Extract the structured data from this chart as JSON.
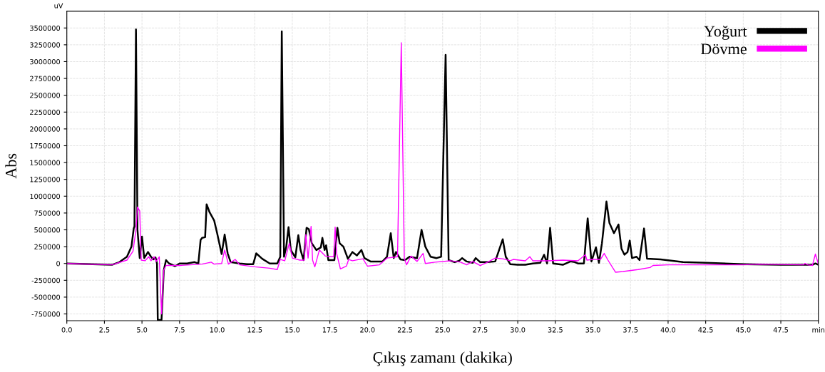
{
  "chart_data": {
    "type": "line",
    "xlabel": "Çıkış zamanı (dakika)",
    "ylabel": "Abs",
    "annotations": [
      "uV"
    ],
    "xlim": [
      0,
      50
    ],
    "ylim": [
      -850000,
      3750000
    ],
    "xticks": [
      {
        "value": 0,
        "label": "0.0"
      },
      {
        "value": 2.5,
        "label": "2.5"
      },
      {
        "value": 5,
        "label": "5.0"
      },
      {
        "value": 7.5,
        "label": "7.5"
      },
      {
        "value": 10,
        "label": "10.0"
      },
      {
        "value": 12.5,
        "label": "12.5"
      },
      {
        "value": 15,
        "label": "15.0"
      },
      {
        "value": 17.5,
        "label": "17.5"
      },
      {
        "value": 20,
        "label": "20.0"
      },
      {
        "value": 22.5,
        "label": "22.5"
      },
      {
        "value": 25,
        "label": "25.0"
      },
      {
        "value": 27.5,
        "label": "27.5"
      },
      {
        "value": 30,
        "label": "30.0"
      },
      {
        "value": 32.5,
        "label": "32.5"
      },
      {
        "value": 35,
        "label": "35.0"
      },
      {
        "value": 37.5,
        "label": "37.5"
      },
      {
        "value": 40,
        "label": "40.0"
      },
      {
        "value": 42.5,
        "label": "42.5"
      },
      {
        "value": 45,
        "label": "45.0"
      },
      {
        "value": 47.5,
        "label": "47.5"
      },
      {
        "value": 50,
        "label": "min"
      }
    ],
    "yticks": [
      -750000,
      -500000,
      -250000,
      0,
      250000,
      500000,
      750000,
      1000000,
      1250000,
      1500000,
      1750000,
      2000000,
      2250000,
      2500000,
      2750000,
      3000000,
      3250000,
      3500000
    ],
    "grid": true,
    "legend": "top right",
    "series": [
      {
        "name": "Yoğurt",
        "color": "#000000",
        "x": [
          0,
          3.0,
          3.5,
          4.0,
          4.3,
          4.45,
          4.5,
          4.6,
          4.7,
          4.85,
          5.0,
          5.15,
          5.4,
          5.6,
          5.75,
          5.9,
          6.0,
          6.05,
          6.3,
          6.45,
          6.6,
          6.8,
          7.2,
          7.5,
          8.0,
          8.5,
          8.75,
          8.9,
          9.0,
          9.2,
          9.3,
          9.5,
          9.8,
          10.0,
          10.3,
          10.5,
          10.7,
          10.9,
          11.5,
          12.0,
          12.4,
          12.6,
          13.0,
          13.5,
          14.0,
          14.2,
          14.3,
          14.45,
          14.6,
          14.75,
          14.9,
          15.2,
          15.4,
          15.55,
          15.75,
          15.95,
          16.1,
          16.3,
          16.6,
          16.9,
          17.0,
          17.15,
          17.25,
          17.4,
          17.8,
          18.0,
          18.15,
          18.4,
          18.7,
          19.0,
          19.3,
          19.6,
          19.8,
          20.2,
          21.0,
          21.3,
          21.55,
          21.75,
          21.9,
          22.2,
          22.5,
          22.8,
          23.3,
          23.6,
          23.85,
          24.2,
          24.6,
          24.9,
          25.2,
          25.4,
          25.8,
          26.1,
          26.3,
          26.6,
          27.0,
          27.2,
          27.5,
          28.0,
          28.5,
          29.0,
          29.2,
          29.5,
          30.0,
          30.5,
          31.0,
          31.5,
          31.75,
          31.95,
          32.15,
          32.35,
          33.0,
          33.5,
          33.8,
          34.0,
          34.4,
          34.65,
          34.9,
          35.2,
          35.4,
          35.6,
          35.9,
          36.1,
          36.4,
          36.7,
          36.9,
          37.1,
          37.3,
          37.45,
          37.6,
          37.9,
          38.1,
          38.4,
          38.6,
          39.5,
          41.0,
          42.5,
          45.0,
          47.5,
          49.6,
          49.8,
          50.0
        ],
        "values": [
          0,
          -20000,
          20000,
          100000,
          250000,
          520000,
          550000,
          3480000,
          500000,
          80000,
          400000,
          80000,
          170000,
          100000,
          60000,
          90000,
          0,
          -840000,
          -840000,
          -100000,
          50000,
          0,
          -40000,
          0,
          0,
          20000,
          0,
          350000,
          380000,
          390000,
          880000,
          760000,
          640000,
          450000,
          140000,
          430000,
          150000,
          20000,
          0,
          -10000,
          -10000,
          150000,
          70000,
          0,
          0,
          100000,
          3450000,
          100000,
          250000,
          540000,
          200000,
          90000,
          420000,
          200000,
          50000,
          530000,
          510000,
          300000,
          200000,
          240000,
          380000,
          200000,
          270000,
          50000,
          50000,
          530000,
          300000,
          250000,
          70000,
          170000,
          120000,
          200000,
          80000,
          30000,
          30000,
          100000,
          450000,
          80000,
          170000,
          60000,
          50000,
          100000,
          80000,
          500000,
          250000,
          100000,
          80000,
          100000,
          3100000,
          50000,
          20000,
          40000,
          80000,
          30000,
          10000,
          80000,
          20000,
          20000,
          30000,
          360000,
          100000,
          -10000,
          -20000,
          -20000,
          0,
          10000,
          130000,
          0,
          530000,
          0,
          -20000,
          30000,
          20000,
          0,
          0,
          670000,
          30000,
          240000,
          10000,
          300000,
          920000,
          600000,
          450000,
          580000,
          220000,
          130000,
          170000,
          340000,
          80000,
          100000,
          50000,
          520000,
          70000,
          60000,
          20000,
          10000,
          -10000,
          -20000,
          -20000,
          0,
          -20000
        ]
      },
      {
        "name": "Dövme",
        "color": "#ff00ff",
        "x": [
          0,
          3.0,
          4.0,
          4.4,
          4.6,
          4.7,
          4.85,
          4.95,
          5.2,
          5.45,
          5.6,
          5.8,
          5.95,
          6.15,
          6.3,
          6.45,
          6.6,
          7.5,
          9.0,
          9.6,
          9.8,
          10.3,
          10.5,
          10.75,
          11.2,
          11.5,
          12.5,
          13.5,
          14.0,
          14.2,
          14.5,
          14.8,
          15.0,
          15.5,
          15.8,
          15.9,
          16.05,
          16.25,
          16.35,
          16.5,
          16.8,
          17.2,
          17.75,
          17.85,
          17.95,
          18.2,
          18.6,
          18.75,
          19.0,
          19.7,
          20.0,
          20.8,
          21.3,
          22.0,
          22.25,
          22.45,
          22.6,
          22.9,
          23.3,
          23.7,
          23.85,
          24.5,
          25.5,
          26.2,
          26.6,
          27.0,
          27.5,
          28.0,
          28.5,
          29.0,
          29.5,
          29.7,
          30.5,
          30.8,
          31.0,
          32.0,
          33.0,
          34.0,
          34.5,
          34.6,
          35.0,
          35.5,
          35.75,
          36.0,
          36.5,
          37.0,
          38.0,
          38.8,
          39.0,
          40.0,
          45.0,
          46.0,
          49.0,
          49.1,
          49.3,
          49.6,
          49.8,
          50.0
        ],
        "values": [
          0,
          -20000,
          50000,
          180000,
          500000,
          840000,
          780000,
          50000,
          40000,
          100000,
          40000,
          100000,
          30000,
          100000,
          -750000,
          -100000,
          -30000,
          -30000,
          -10000,
          20000,
          -10000,
          0,
          200000,
          -10000,
          60000,
          -20000,
          -50000,
          -70000,
          -90000,
          60000,
          40000,
          300000,
          80000,
          50000,
          50000,
          430000,
          80000,
          550000,
          50000,
          -50000,
          200000,
          110000,
          100000,
          540000,
          150000,
          -80000,
          -40000,
          60000,
          40000,
          70000,
          -40000,
          -20000,
          80000,
          100000,
          3280000,
          80000,
          -20000,
          110000,
          30000,
          150000,
          0,
          20000,
          40000,
          20000,
          -20000,
          30000,
          -30000,
          20000,
          80000,
          70000,
          40000,
          60000,
          40000,
          100000,
          40000,
          40000,
          50000,
          40000,
          130000,
          50000,
          60000,
          60000,
          150000,
          50000,
          -130000,
          -120000,
          -90000,
          -60000,
          -30000,
          -20000,
          -20000,
          -10000,
          -20000,
          0,
          -20000,
          -30000,
          140000,
          -10000
        ]
      }
    ]
  }
}
